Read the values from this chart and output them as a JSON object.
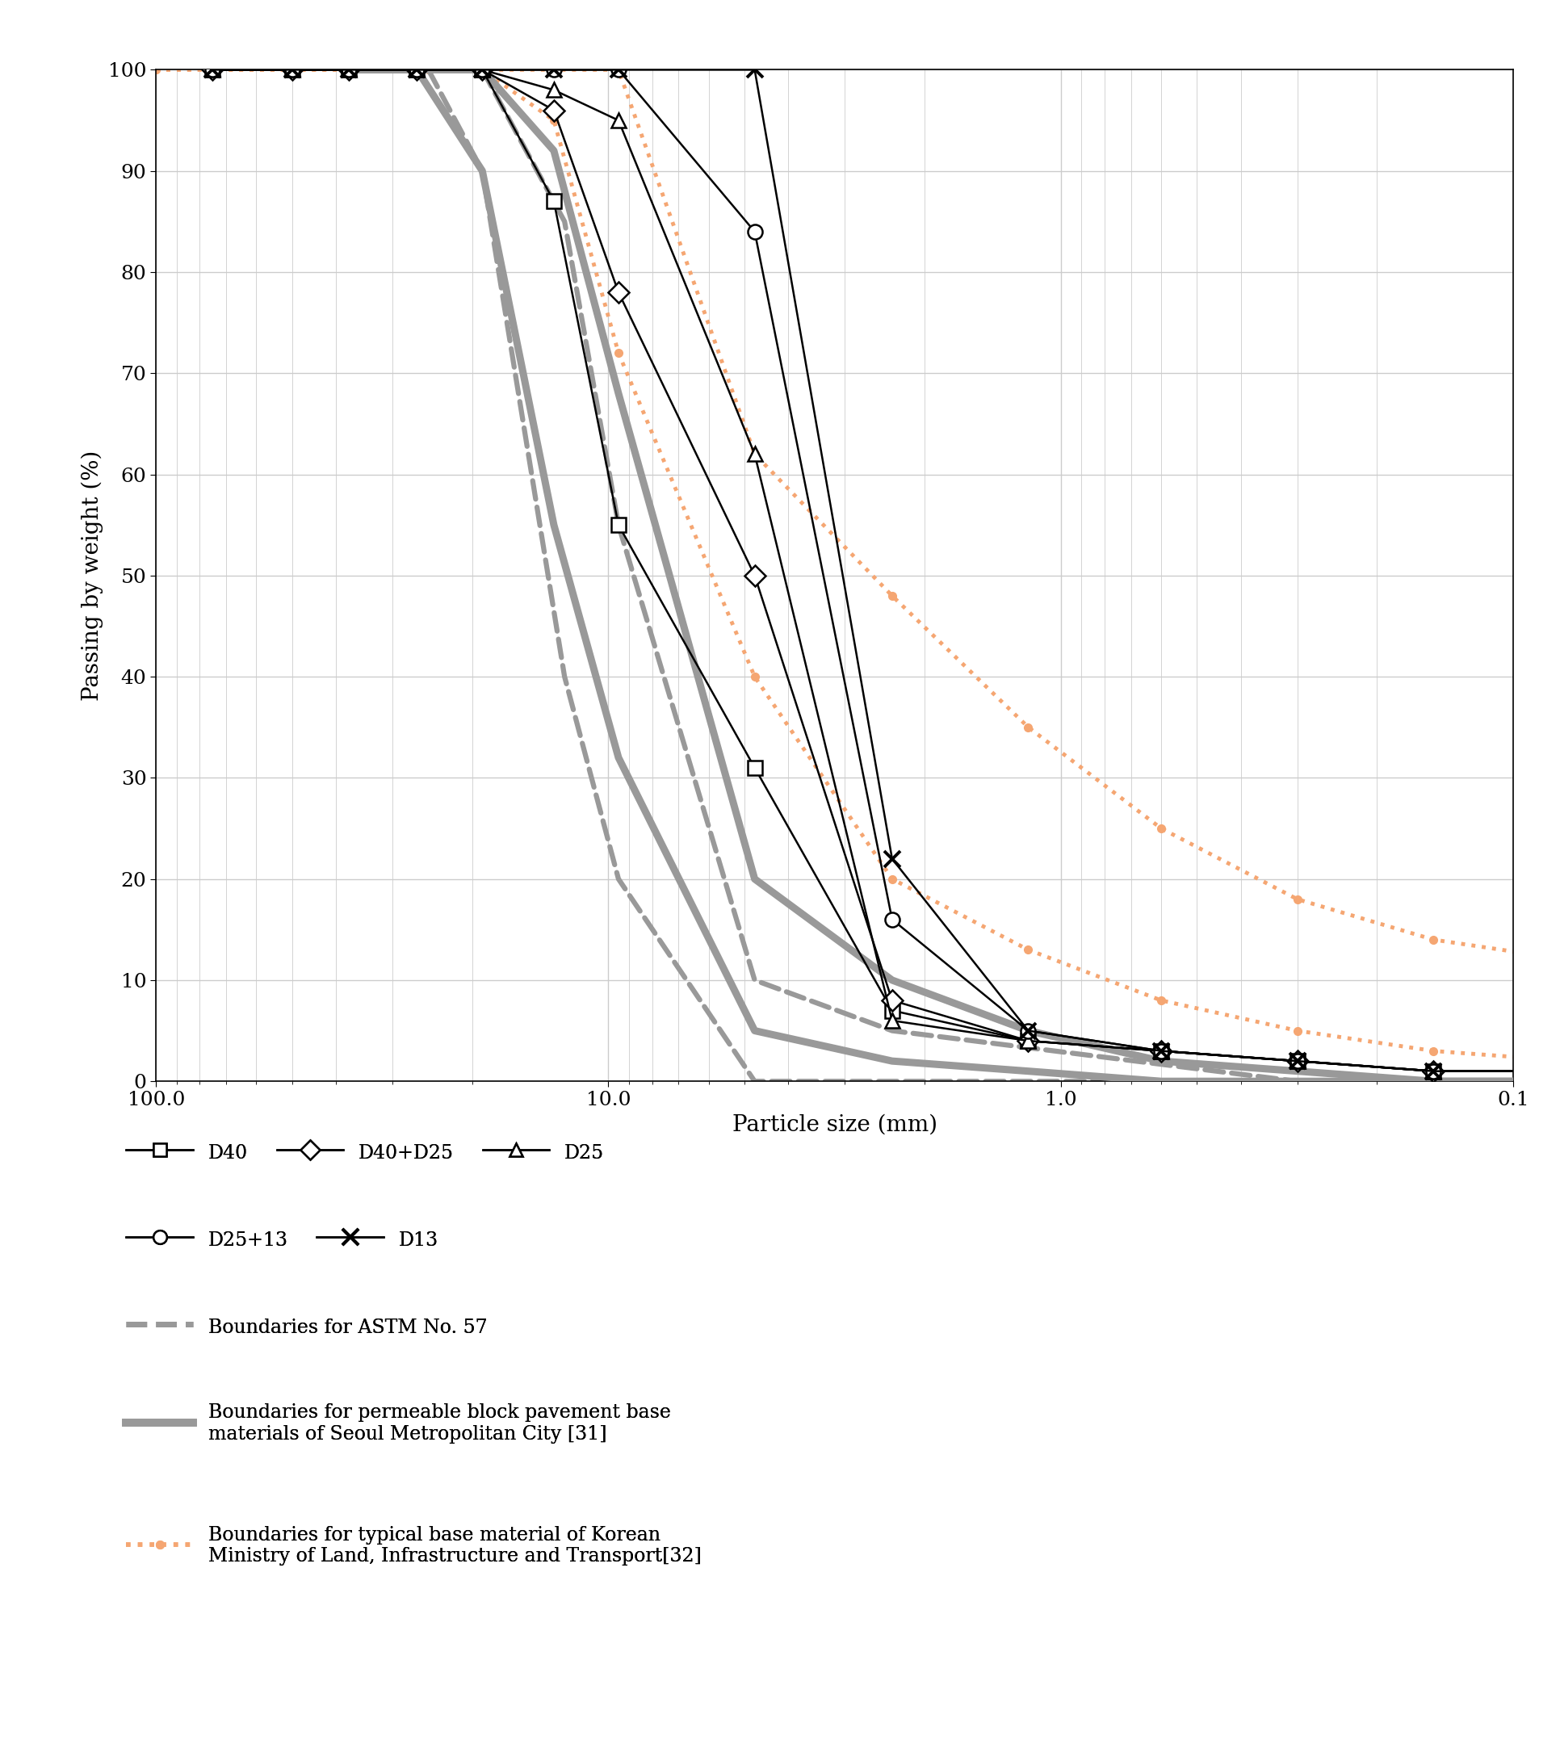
{
  "xlabel": "Particle size (mm)",
  "ylabel": "Passing by weight (%)",
  "xlim_left": 100.0,
  "xlim_right": 0.1,
  "ylim": [
    0,
    100
  ],
  "yticks": [
    0,
    10,
    20,
    30,
    40,
    50,
    60,
    70,
    80,
    90,
    100
  ],
  "D40": {
    "x": [
      75,
      50,
      37.5,
      26.5,
      19.0,
      13.2,
      9.5,
      4.75,
      2.36,
      1.18,
      0.6,
      0.3,
      0.15,
      0.075
    ],
    "y": [
      100,
      100,
      100,
      100,
      100,
      87,
      55,
      31,
      7,
      4,
      3,
      2,
      1,
      1
    ],
    "color": "#000000",
    "marker": "s",
    "label": "D40"
  },
  "D40D25": {
    "x": [
      75,
      50,
      37.5,
      26.5,
      19.0,
      13.2,
      9.5,
      4.75,
      2.36,
      1.18,
      0.6,
      0.3,
      0.15,
      0.075
    ],
    "y": [
      100,
      100,
      100,
      100,
      100,
      96,
      78,
      50,
      8,
      4,
      3,
      2,
      1,
      1
    ],
    "color": "#000000",
    "marker": "D",
    "label": "D40+D25"
  },
  "D25": {
    "x": [
      75,
      50,
      37.5,
      26.5,
      19.0,
      13.2,
      9.5,
      4.75,
      2.36,
      1.18,
      0.6,
      0.3,
      0.15,
      0.075
    ],
    "y": [
      100,
      100,
      100,
      100,
      100,
      98,
      95,
      62,
      6,
      4,
      3,
      2,
      1,
      1
    ],
    "color": "#000000",
    "marker": "^",
    "label": "D25"
  },
  "D2513": {
    "x": [
      75,
      50,
      37.5,
      26.5,
      19.0,
      13.2,
      9.5,
      4.75,
      2.36,
      1.18,
      0.6,
      0.3,
      0.15,
      0.075
    ],
    "y": [
      100,
      100,
      100,
      100,
      100,
      100,
      100,
      84,
      16,
      5,
      3,
      2,
      1,
      1
    ],
    "color": "#000000",
    "marker": "o",
    "label": "D25+13"
  },
  "D13": {
    "x": [
      75,
      50,
      37.5,
      26.5,
      19.0,
      13.2,
      9.5,
      4.75,
      2.36,
      1.18,
      0.6,
      0.3,
      0.15,
      0.075
    ],
    "y": [
      100,
      100,
      100,
      100,
      100,
      100,
      100,
      100,
      22,
      5,
      3,
      2,
      1,
      1
    ],
    "color": "#000000",
    "marker": "x",
    "label": "D13"
  },
  "ASTM_lower": {
    "x": [
      37.5,
      25.0,
      19.0,
      12.5,
      9.5,
      4.75,
      2.36,
      0.3,
      0.075
    ],
    "y": [
      100,
      100,
      90,
      40,
      20,
      0,
      0,
      0,
      0
    ],
    "color": "#999999",
    "style": "--",
    "lw": 4.5
  },
  "ASTM_upper": {
    "x": [
      37.5,
      25.0,
      19.0,
      12.5,
      9.5,
      4.75,
      2.36,
      0.3,
      0.075
    ],
    "y": [
      100,
      100,
      100,
      85,
      55,
      10,
      5,
      0,
      0
    ],
    "color": "#999999",
    "style": "--",
    "lw": 4.5
  },
  "Seoul_lower": {
    "x": [
      37.5,
      26.5,
      19.0,
      13.2,
      9.5,
      4.75,
      2.36,
      1.18,
      0.6,
      0.3,
      0.15,
      0.075
    ],
    "y": [
      100,
      100,
      90,
      55,
      32,
      5,
      2,
      1,
      0,
      0,
      0,
      0
    ],
    "color": "#999999",
    "style": "-",
    "lw": 6.5
  },
  "Seoul_upper": {
    "x": [
      37.5,
      26.5,
      19.0,
      13.2,
      9.5,
      4.75,
      2.36,
      1.18,
      0.6,
      0.3,
      0.15,
      0.075
    ],
    "y": [
      100,
      100,
      100,
      92,
      68,
      20,
      10,
      5,
      2,
      1,
      0,
      0
    ],
    "color": "#999999",
    "style": "-",
    "lw": 6.5
  },
  "Korean_lower": {
    "x": [
      100,
      75,
      50,
      37.5,
      25.0,
      19.0,
      13.2,
      9.5,
      4.75,
      2.36,
      1.18,
      0.6,
      0.3,
      0.15,
      0.075
    ],
    "y": [
      100,
      100,
      100,
      100,
      100,
      100,
      95,
      72,
      40,
      20,
      13,
      8,
      5,
      3,
      2
    ],
    "color": "#F5A672",
    "style": ":",
    "lw": 3.5
  },
  "Korean_upper": {
    "x": [
      100,
      75,
      50,
      37.5,
      25.0,
      19.0,
      13.2,
      9.5,
      4.75,
      2.36,
      1.18,
      0.6,
      0.3,
      0.15,
      0.075
    ],
    "y": [
      100,
      100,
      100,
      100,
      100,
      100,
      100,
      100,
      62,
      48,
      35,
      25,
      18,
      14,
      12
    ],
    "color": "#F5A672",
    "style": ":",
    "lw": 3.5
  },
  "bg_color": "#ffffff",
  "grid_color": "#cccccc",
  "axis_color": "#000000",
  "legend_fontsize": 17,
  "label_fontsize": 20,
  "tick_fontsize": 18
}
